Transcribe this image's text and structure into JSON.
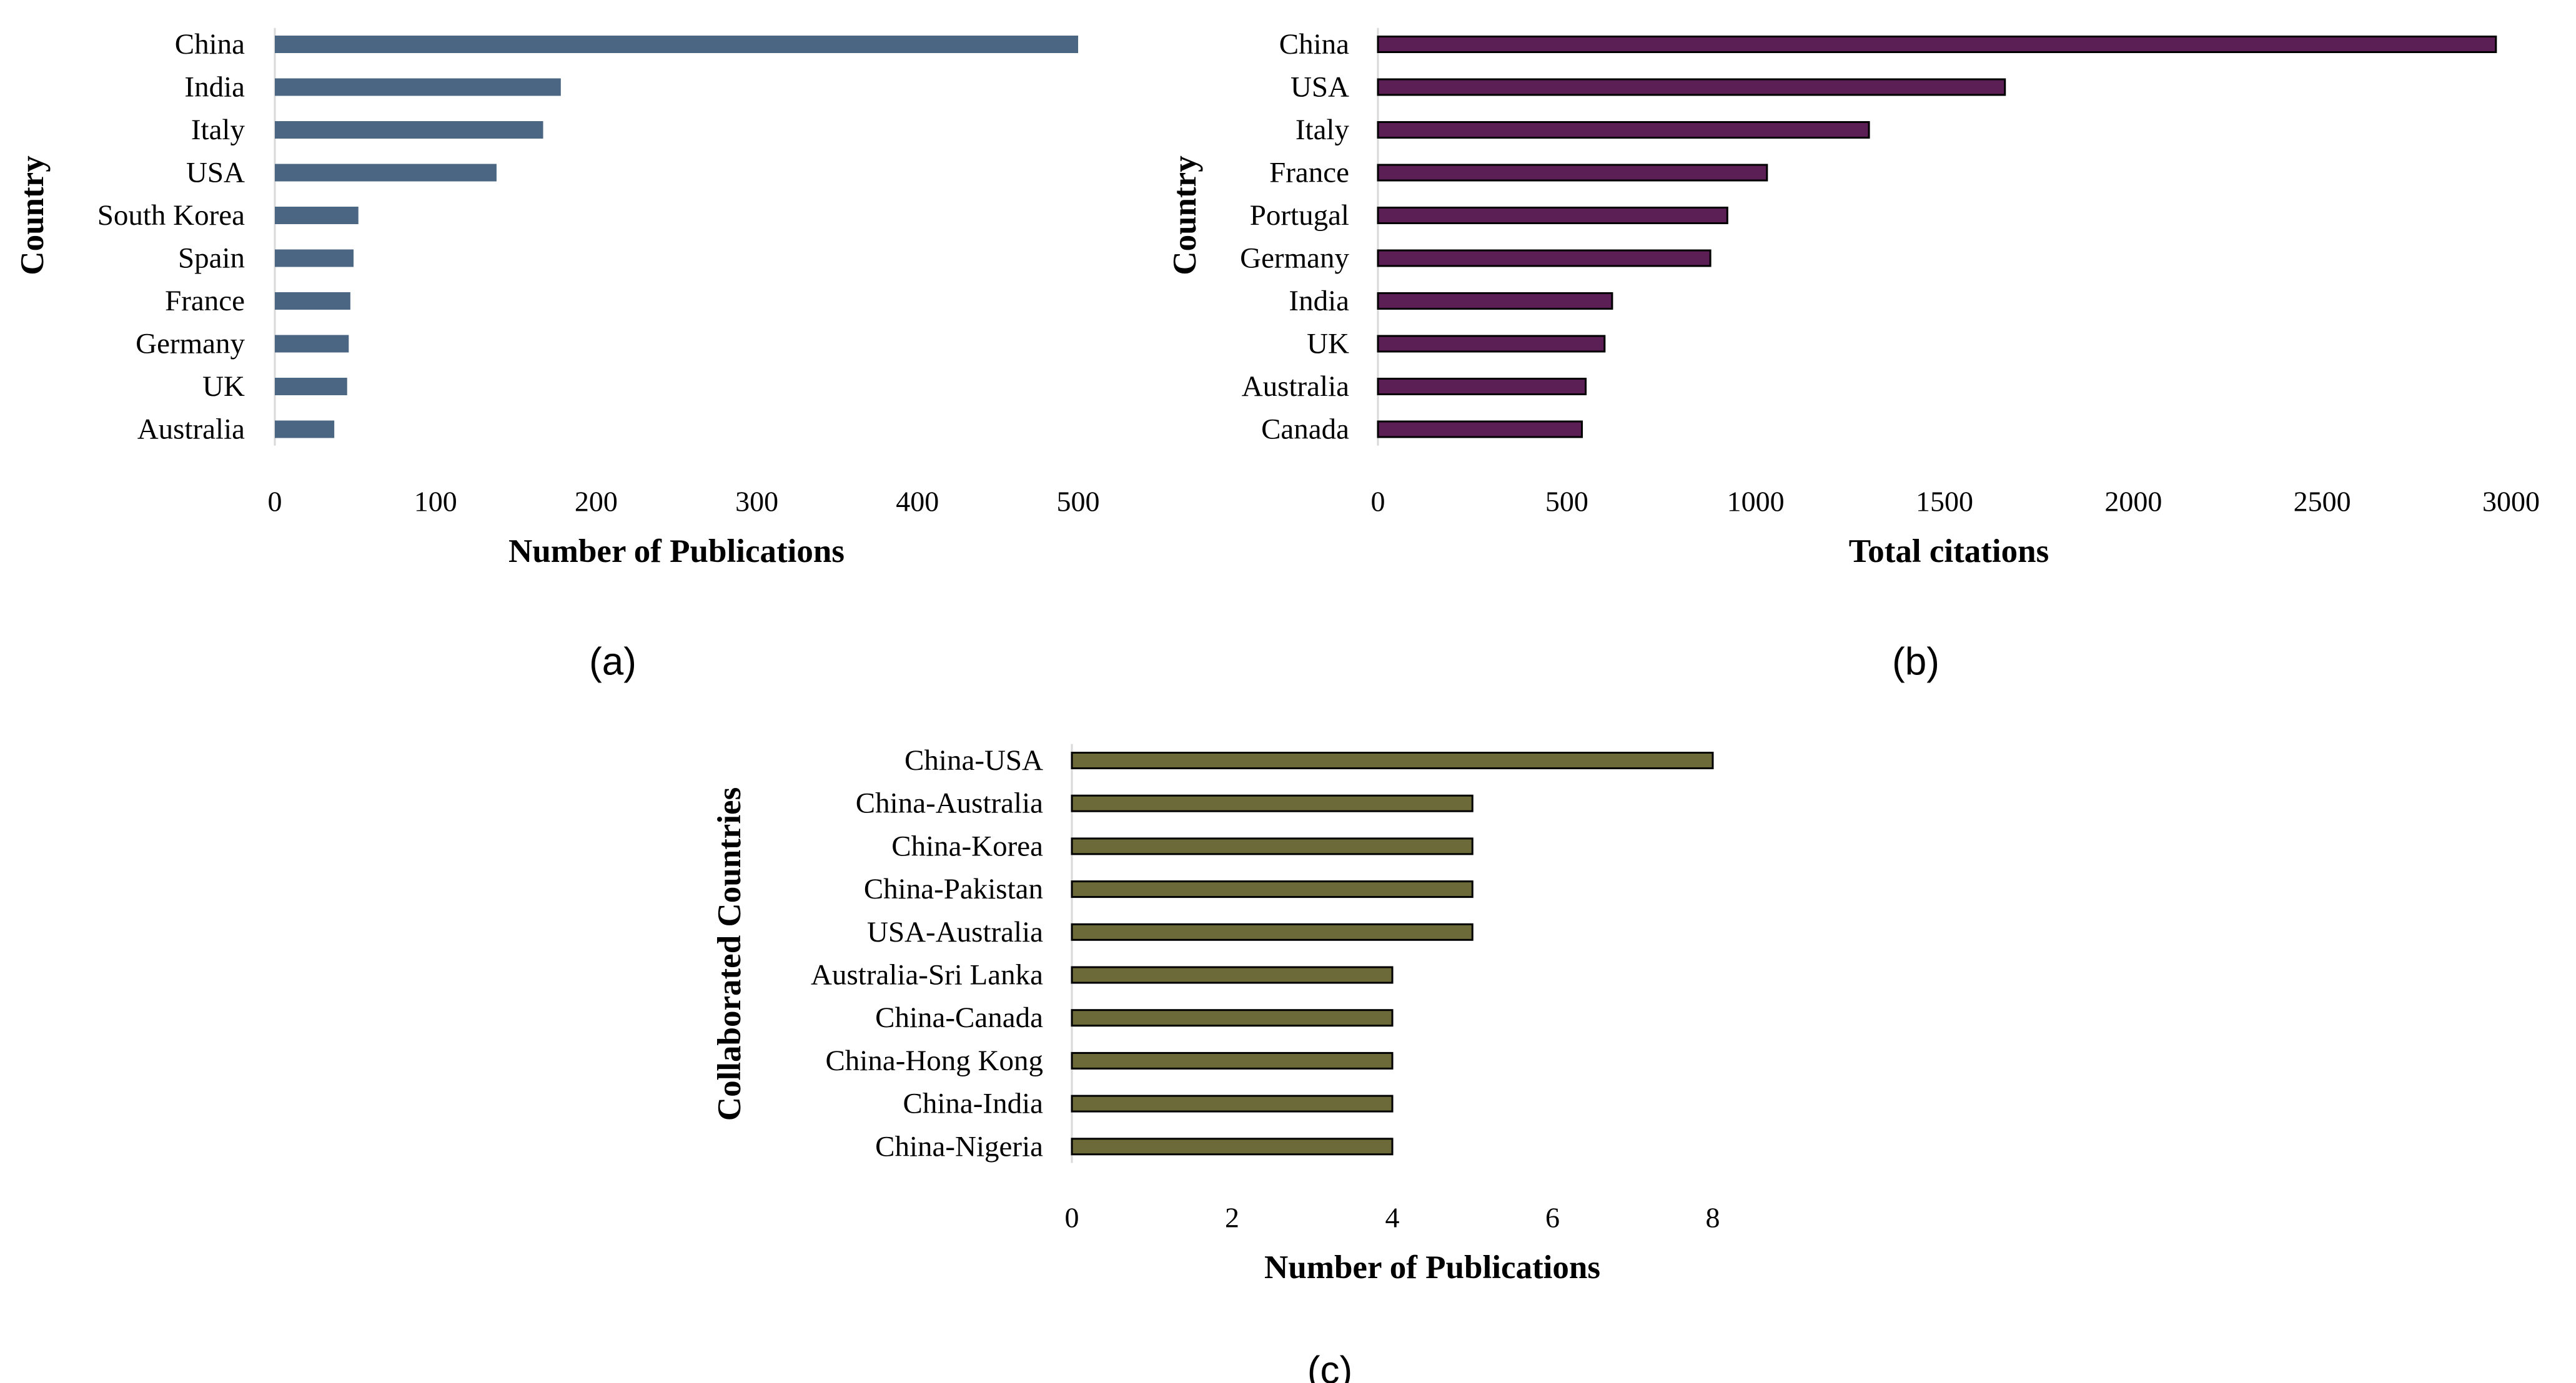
{
  "chart_data": [
    {
      "type": "bar",
      "orientation": "horizontal",
      "panel_label": "(a)",
      "xlabel": "Number of Publications",
      "ylabel": "Country",
      "categories": [
        "China",
        "India",
        "Italy",
        "USA",
        "South Korea",
        "Spain",
        "France",
        "Germany",
        "UK",
        "Australia"
      ],
      "values": [
        500,
        178,
        167,
        138,
        52,
        49,
        47,
        46,
        45,
        37
      ],
      "xlim": [
        0,
        500
      ],
      "xticks": [
        "0",
        "100",
        "200",
        "300",
        "400",
        "500"
      ],
      "grid": false,
      "bar_color": "#4a6683"
    },
    {
      "type": "bar",
      "orientation": "horizontal",
      "panel_label": "(b)",
      "xlabel": "Total citations",
      "ylabel": "Country",
      "categories": [
        "China",
        "USA",
        "Italy",
        "France",
        "Portugal",
        "Germany",
        "India",
        "UK",
        "Australia",
        "Canada"
      ],
      "values": [
        2960,
        1660,
        1300,
        1030,
        925,
        880,
        620,
        600,
        550,
        540
      ],
      "xlim": [
        0,
        3000
      ],
      "xticks": [
        "0",
        "500",
        "1000",
        "1500",
        "2000",
        "2500",
        "3000"
      ],
      "grid": false,
      "bar_color": "#5b1e55"
    },
    {
      "type": "bar",
      "orientation": "horizontal",
      "panel_label": "(c)",
      "xlabel": "Number of Publications",
      "ylabel": "Collaborated Countries",
      "categories": [
        "China-USA",
        "China-Australia",
        "China-Korea",
        "China-Pakistan",
        "USA-Australia",
        "Australia-Sri Lanka",
        "China-Canada",
        "China-Hong Kong",
        "China-India",
        "China-Nigeria"
      ],
      "values": [
        8,
        5,
        5,
        5,
        5,
        4,
        4,
        4,
        4,
        4
      ],
      "xlim": [
        0,
        8
      ],
      "xticks": [
        "0",
        "2",
        "4",
        "6",
        "8"
      ],
      "grid": false,
      "bar_color": "#6b6a38"
    }
  ]
}
